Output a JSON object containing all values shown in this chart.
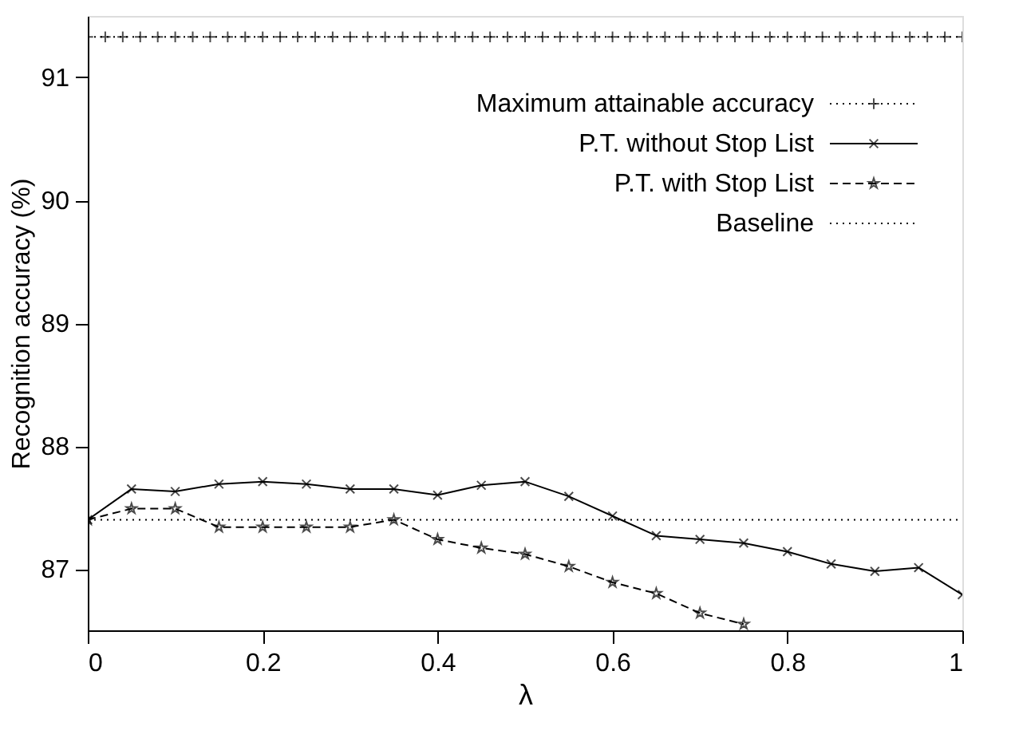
{
  "chart_data": {
    "type": "line",
    "xlabel": "λ",
    "ylabel": "Recognition accuracy (%)",
    "xlim": [
      0,
      1
    ],
    "xticks": [
      0,
      0.2,
      0.4,
      0.6,
      0.8,
      1
    ],
    "ylim": [
      86.5,
      91.5
    ],
    "yticks": [
      87,
      88,
      89,
      90,
      91
    ],
    "grid": false,
    "legend": "top right",
    "series": [
      {
        "name": "Maximum attainable accuracy",
        "color": "#000000",
        "marker": "cross",
        "line_style": "dotted",
        "x": [
          0,
          0.02,
          0.04,
          0.06,
          0.08,
          0.1,
          0.12,
          0.14,
          0.16,
          0.18,
          0.2,
          0.22,
          0.24,
          0.26,
          0.28,
          0.3,
          0.32,
          0.34,
          0.36,
          0.38,
          0.4,
          0.42,
          0.44,
          0.46,
          0.48,
          0.5,
          0.52,
          0.54,
          0.56,
          0.58,
          0.6,
          0.62,
          0.64,
          0.66,
          0.68,
          0.7,
          0.72,
          0.74,
          0.76,
          0.78,
          0.8,
          0.82,
          0.84,
          0.86,
          0.88,
          0.9,
          0.92,
          0.94,
          0.96,
          0.98,
          1
        ],
        "values": [
          91.33,
          91.33,
          91.33,
          91.33,
          91.33,
          91.33,
          91.33,
          91.33,
          91.33,
          91.33,
          91.33,
          91.33,
          91.33,
          91.33,
          91.33,
          91.33,
          91.33,
          91.33,
          91.33,
          91.33,
          91.33,
          91.33,
          91.33,
          91.33,
          91.33,
          91.33,
          91.33,
          91.33,
          91.33,
          91.33,
          91.33,
          91.33,
          91.33,
          91.33,
          91.33,
          91.33,
          91.33,
          91.33,
          91.33,
          91.33,
          91.33,
          91.33,
          91.33,
          91.33,
          91.33,
          91.33,
          91.33,
          91.33,
          91.33,
          91.33,
          91.33
        ]
      },
      {
        "name": "P.T. without Stop List",
        "color": "#000000",
        "marker": "x",
        "line_style": "solid",
        "x": [
          0,
          0.05,
          0.1,
          0.15,
          0.2,
          0.25,
          0.3,
          0.35,
          0.4,
          0.45,
          0.5,
          0.55,
          0.6,
          0.65,
          0.7,
          0.75,
          0.8,
          0.85,
          0.9,
          0.95,
          1
        ],
        "values": [
          87.4,
          87.65,
          87.63,
          87.69,
          87.71,
          87.69,
          87.65,
          87.65,
          87.6,
          87.68,
          87.71,
          87.59,
          87.43,
          87.27,
          87.24,
          87.21,
          87.14,
          87.04,
          86.98,
          87.01,
          86.79
        ]
      },
      {
        "name": "P.T. with Stop List",
        "color": "#000000",
        "marker": "star",
        "line_style": "dashed",
        "x": [
          0,
          0.05,
          0.1,
          0.15,
          0.2,
          0.25,
          0.3,
          0.35,
          0.4,
          0.45,
          0.5,
          0.55,
          0.6,
          0.65,
          0.7,
          0.75
        ],
        "values": [
          87.4,
          87.49,
          87.49,
          87.34,
          87.34,
          87.34,
          87.34,
          87.4,
          87.24,
          87.17,
          87.12,
          87.02,
          86.89,
          86.8,
          86.64,
          86.55
        ]
      },
      {
        "name": "Baseline",
        "color": "#000000",
        "marker": "none",
        "line_style": "dotted",
        "x": [
          0,
          1
        ],
        "values": [
          87.4,
          87.4
        ]
      }
    ]
  }
}
